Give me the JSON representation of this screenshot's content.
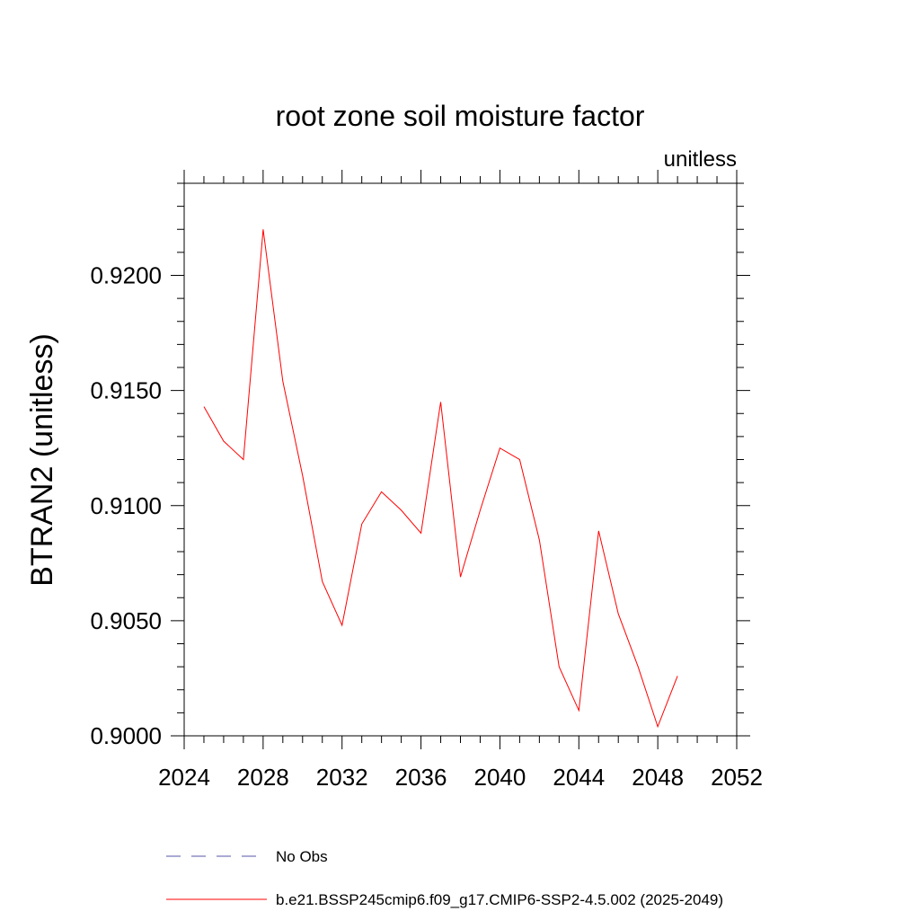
{
  "chart_data": {
    "type": "line",
    "title": "root zone soil moisture factor",
    "units_label": "unitless",
    "ylabel": "BTRAN2  (unitless)",
    "xlabel": "",
    "xlim": [
      2024,
      2052
    ],
    "ylim": [
      0.9,
      0.924
    ],
    "x_ticks": [
      2024,
      2028,
      2032,
      2036,
      2040,
      2044,
      2048,
      2052
    ],
    "x_tick_labels": [
      "2024",
      "2028",
      "2032",
      "2036",
      "2040",
      "2044",
      "2048",
      "2052"
    ],
    "y_ticks": [
      0.9,
      0.905,
      0.91,
      0.915,
      0.92
    ],
    "y_tick_labels": [
      "0.9000",
      "0.9050",
      "0.9100",
      "0.9150",
      "0.9200"
    ],
    "series": [
      {
        "name": "b.e21.BSSP245cmip6.f09_g17.CMIP6-SSP2-4.5.002 (2025-2049)",
        "color": "#ff0000",
        "style": "solid",
        "x": [
          2025,
          2026,
          2027,
          2028,
          2029,
          2030,
          2031,
          2032,
          2033,
          2034,
          2035,
          2036,
          2037,
          2038,
          2039,
          2040,
          2041,
          2042,
          2043,
          2044,
          2045,
          2046,
          2047,
          2048,
          2049
        ],
        "y": [
          0.9143,
          0.9128,
          0.912,
          0.922,
          0.9154,
          0.9113,
          0.9067,
          0.9048,
          0.9092,
          0.9106,
          0.9098,
          0.9088,
          0.9145,
          0.9069,
          0.9098,
          0.9125,
          0.912,
          0.9085,
          0.903,
          0.9011,
          0.9089,
          0.9053,
          0.903,
          0.9004,
          0.9026
        ]
      }
    ],
    "legend": [
      {
        "label": "No Obs",
        "color": "#5555aa",
        "style": "dashed"
      },
      {
        "label": "b.e21.BSSP245cmip6.f09_g17.CMIP6-SSP2-4.5.002 (2025-2049)",
        "color": "#ff0000",
        "style": "solid"
      }
    ],
    "legend_position": "bottom",
    "grid": false
  }
}
